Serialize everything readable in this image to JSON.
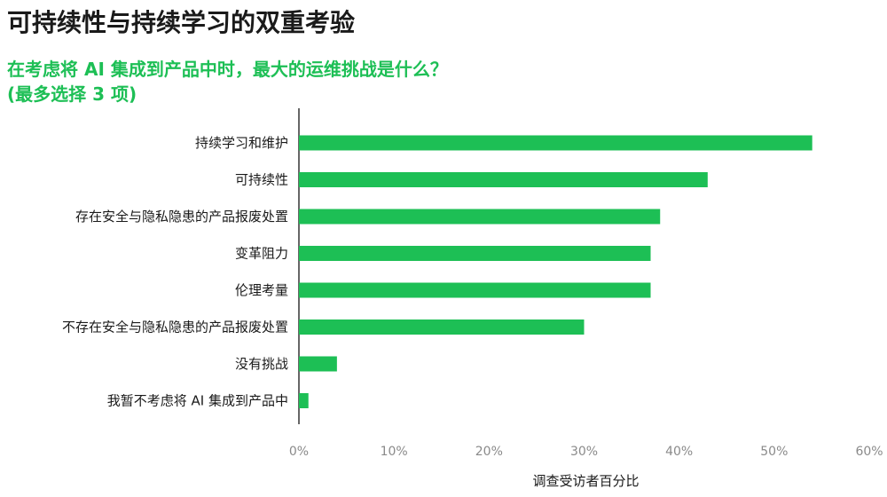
{
  "page": {
    "title": "可持续性与持续学习的双重考验"
  },
  "chart_data": {
    "type": "bar",
    "orientation": "horizontal",
    "title": "在考虑将 AI 集成到产品中时，最大的运维挑战是什么？",
    "subtitle": "(最多选择 3 项)",
    "xlabel": "调查受访者百分比",
    "ylabel": "",
    "xlim": [
      0,
      60
    ],
    "ticks": [
      "0%",
      "10%",
      "20%",
      "30%",
      "40%",
      "50%",
      "60%"
    ],
    "tick_values": [
      0,
      10,
      20,
      30,
      40,
      50,
      60
    ],
    "grid": false,
    "categories": [
      "持续学习和维护",
      "可持续性",
      "存在安全与隐私隐患的产品报废处置",
      "变革阻力",
      "伦理考量",
      "不存在安全与隐私隐患的产品报废处置",
      "没有挑战",
      "我暂不考虑将 AI 集成到产品中"
    ],
    "values": [
      54,
      43,
      38,
      37,
      37,
      30,
      4,
      1
    ],
    "bar_color": "#1dbf55",
    "accent_color": "#1dbf55"
  }
}
